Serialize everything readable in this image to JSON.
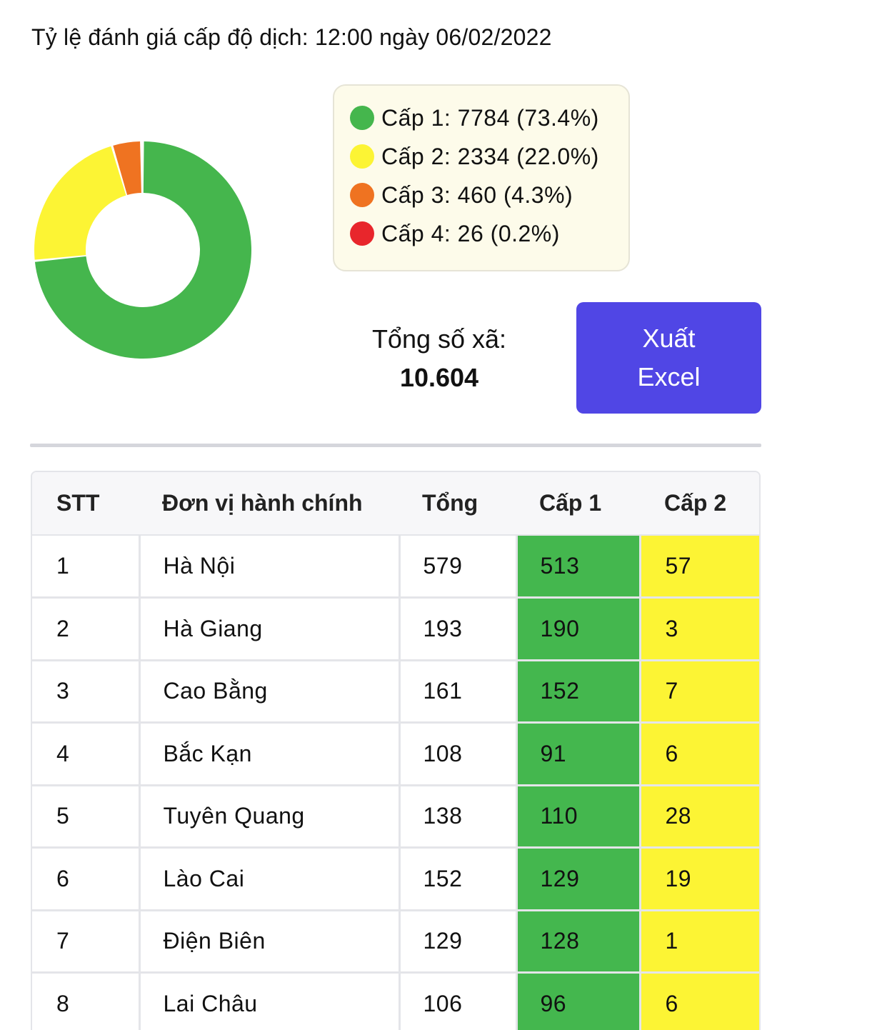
{
  "header": {
    "title": "Tỷ lệ đánh giá cấp độ dịch: 12:00 ngày 06/02/2022"
  },
  "chart_data": {
    "type": "pie",
    "categories": [
      "Cấp 1",
      "Cấp 2",
      "Cấp 3",
      "Cấp 4"
    ],
    "values": [
      7784,
      2334,
      460,
      26
    ],
    "colors": [
      "#45b64d",
      "#fcf434",
      "#ef7321",
      "#e8262c"
    ]
  },
  "legend": {
    "items": [
      {
        "label": "Cấp 1: 7784 (73.4%)",
        "color": "#45b64d"
      },
      {
        "label": "Cấp 2: 2334 (22.0%)",
        "color": "#fcf434"
      },
      {
        "label": "Cấp 3: 460 (4.3%)",
        "color": "#ef7321"
      },
      {
        "label": "Cấp 4: 26 (0.2%)",
        "color": "#e8262c"
      }
    ]
  },
  "summary": {
    "total_label": "Tổng số xã:",
    "total_value": "10.604",
    "export_label": "Xuất Excel"
  },
  "table": {
    "headers": [
      "STT",
      "Đơn vị hành chính",
      "Tổng",
      "Cấp 1",
      "Cấp 2"
    ],
    "rows": [
      [
        "1",
        "Hà Nội",
        "579",
        "513",
        "57"
      ],
      [
        "2",
        "Hà Giang",
        "193",
        "190",
        "3"
      ],
      [
        "3",
        "Cao Bằng",
        "161",
        "152",
        "7"
      ],
      [
        "4",
        "Bắc Kạn",
        "108",
        "91",
        "6"
      ],
      [
        "5",
        "Tuyên Quang",
        "138",
        "110",
        "28"
      ],
      [
        "6",
        "Lào Cai",
        "152",
        "129",
        "19"
      ],
      [
        "7",
        "Điện Biên",
        "129",
        "128",
        "1"
      ],
      [
        "8",
        "Lai Châu",
        "106",
        "96",
        "6"
      ]
    ]
  }
}
